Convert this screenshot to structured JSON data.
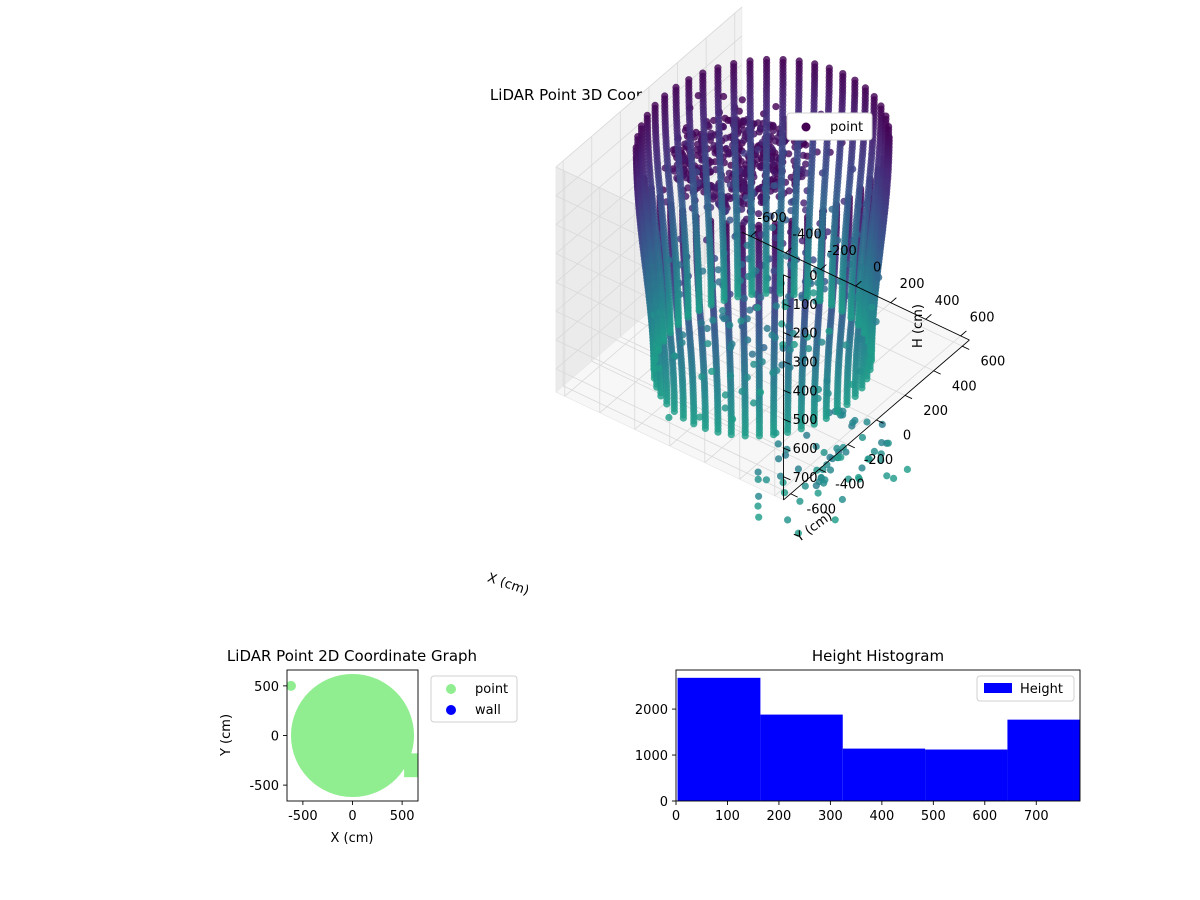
{
  "chart_data": [
    {
      "type": "scatter",
      "projection": "3d",
      "title": "LiDAR Point 3D Coordinate Graph",
      "xlabel": "X (cm)",
      "ylabel": "Y (cm)",
      "zlabel": "H (cm)",
      "xticks": [
        -600,
        -400,
        -200,
        0,
        200,
        400,
        600
      ],
      "yticks": [
        -600,
        -400,
        -200,
        0,
        200,
        400,
        600
      ],
      "zticks": [
        0,
        100,
        200,
        300,
        400,
        500,
        600,
        700
      ],
      "xlim": [
        -650,
        650
      ],
      "ylim": [
        -650,
        650
      ],
      "zlim": [
        780,
        0
      ],
      "z_axis_inverted": true,
      "colormap": "viridis (height-coloured, purple = top, teal = bottom)",
      "series": [
        {
          "name": "point"
        }
      ],
      "legend_loc": "upper-right",
      "structure": {
        "shape": "cylindrical wall of vertical scan lines with dense floor cluster",
        "wall_radius_cm": 560,
        "height_range_cm": [
          0,
          780
        ],
        "vertical_scan_lines": 48
      }
    },
    {
      "type": "scatter",
      "title": "LiDAR Point 2D Coordinate Graph",
      "xlabel": "X (cm)",
      "ylabel": "Y (cm)",
      "xticks": [
        -500,
        0,
        500
      ],
      "yticks": [
        -500,
        0,
        500
      ],
      "xlim": [
        -660,
        660
      ],
      "ylim": [
        -660,
        660
      ],
      "series": [
        {
          "name": "point",
          "color": "#90ee90",
          "shape": "filled disc",
          "radius_cm": 620
        },
        {
          "name": "wall",
          "color": "#0000ff",
          "points": []
        }
      ],
      "legend_loc": "outside-right"
    },
    {
      "type": "bar",
      "subtype": "histogram",
      "title": "Height Histogram",
      "xticks": [
        0,
        100,
        200,
        300,
        400,
        500,
        600,
        700
      ],
      "yticks": [
        0,
        1000,
        2000
      ],
      "xlim": [
        0,
        785
      ],
      "ylim": [
        0,
        2850
      ],
      "bins": [
        [
          3,
          164
        ],
        [
          164,
          324
        ],
        [
          324,
          484
        ],
        [
          484,
          644
        ],
        [
          644,
          785
        ]
      ],
      "values": [
        2680,
        1880,
        1140,
        1120,
        1770
      ],
      "color": "#0000ff",
      "series": [
        {
          "name": "Height"
        }
      ],
      "legend_loc": "upper-right"
    }
  ]
}
